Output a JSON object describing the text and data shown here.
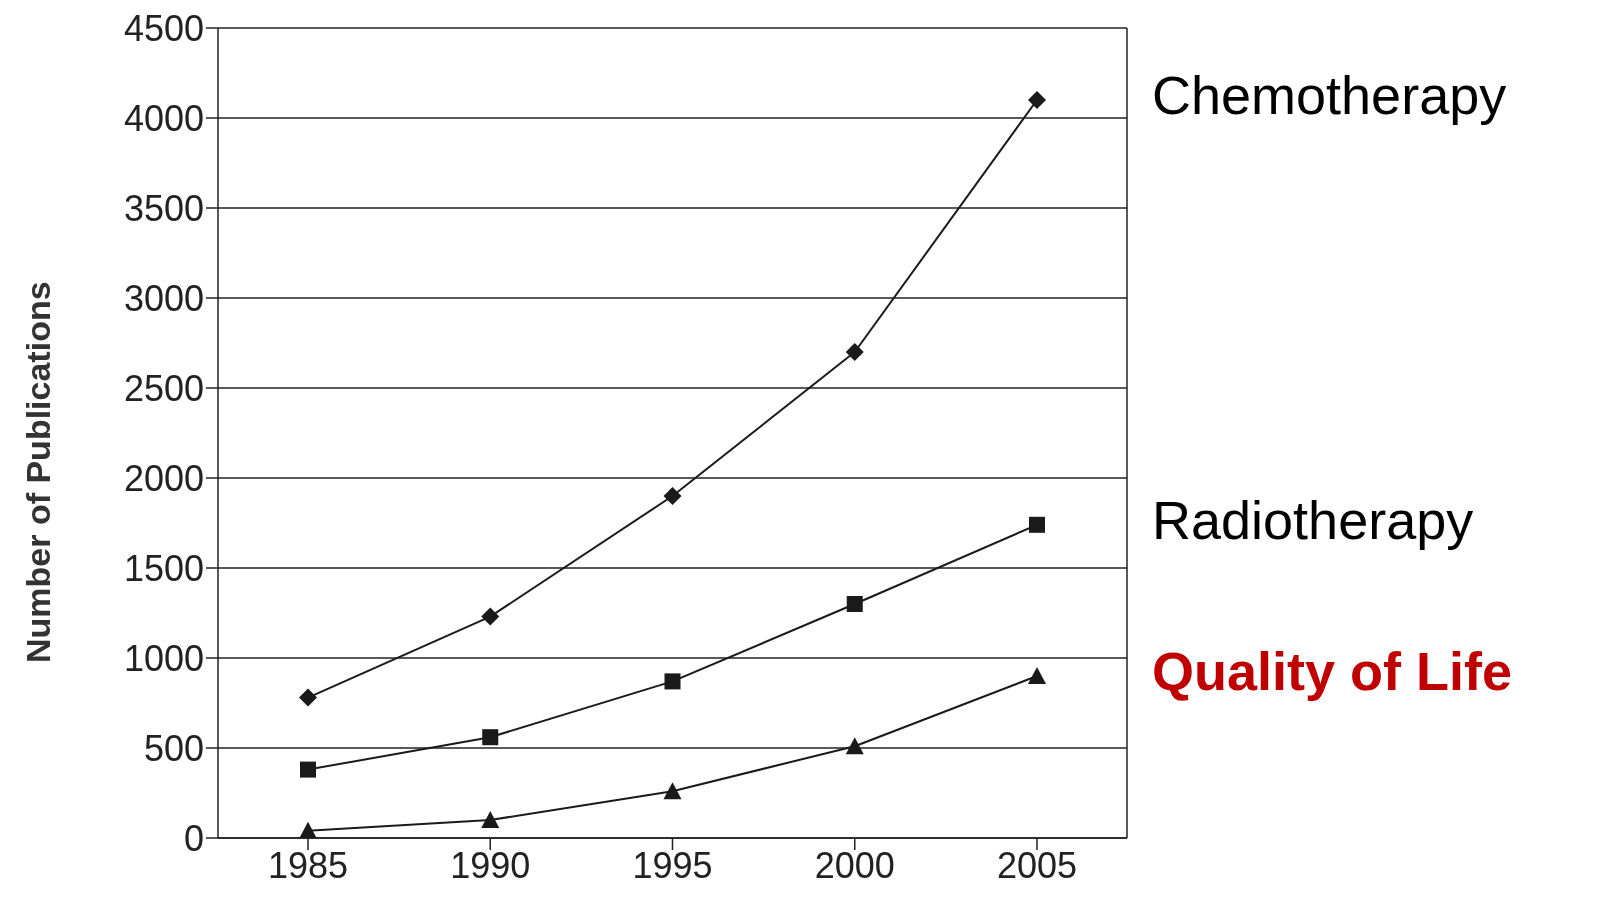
{
  "chart_data": {
    "type": "line",
    "ylabel": "Number of Publications",
    "categories": [
      "1985",
      "1990",
      "1995",
      "2000",
      "2005"
    ],
    "series": [
      {
        "name": "Chemotherapy",
        "color": "#1a1a1a",
        "marker": "diamond",
        "values": [
          780,
          1230,
          1900,
          2700,
          4100
        ]
      },
      {
        "name": "Radiotherapy",
        "color": "#1a1a1a",
        "marker": "square",
        "values": [
          380,
          560,
          870,
          1300,
          1740
        ]
      },
      {
        "name": "Quality of Life",
        "color": "#1a1a1a",
        "marker": "triangle",
        "values": [
          40,
          100,
          260,
          510,
          900
        ]
      }
    ],
    "ylim": [
      0,
      4500
    ],
    "yticks": [
      0,
      500,
      1000,
      1500,
      2000,
      2500,
      3000,
      3500,
      4000,
      4500
    ],
    "grid": "y",
    "legend": false
  }
}
